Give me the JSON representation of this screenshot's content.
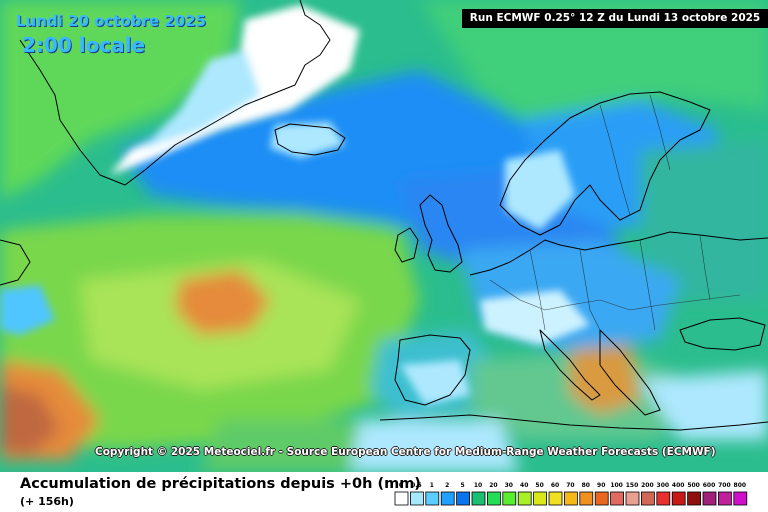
{
  "overlay": {
    "date": "Lundi 20 octobre 2025",
    "time": "2:00 locale",
    "run_info": "Run ECMWF 0.25° 12 Z du Lundi 13 octobre 2025",
    "copyright": "Copyright © 2025 Meteociel.fr - Source European Centre for Medium-Range Weather Forecasts (ECMWF)"
  },
  "footer": {
    "title": "Accumulation de précipitations depuis +0h (mm)",
    "lead": "(+ 156h)"
  },
  "legend": {
    "labels": [
      "0",
      "0.5",
      "1",
      "2",
      "5",
      "10",
      "20",
      "30",
      "40",
      "50",
      "60",
      "70",
      "80",
      "90",
      "100",
      "150",
      "200",
      "300",
      "400",
      "500",
      "600",
      "700",
      "800"
    ],
    "colors": [
      "#ffffff",
      "#a8e8ff",
      "#5ccdff",
      "#20a0ff",
      "#0a74ee",
      "#1abf72",
      "#22dd55",
      "#58ee30",
      "#a8f028",
      "#d8e818",
      "#f0e020",
      "#f6b818",
      "#f09020",
      "#e86820",
      "#e06a60",
      "#e8a090",
      "#d06858",
      "#e83030",
      "#c81818",
      "#901010",
      "#a0207a",
      "#c0209c",
      "#d010c8"
    ]
  },
  "map": {
    "colors": {
      "ocean_high": "#1f8ef5",
      "ocean_mid": "#2bbd8d",
      "ocean_low": "#7fdd4a",
      "ocean_dry": "#b9e85a",
      "heavy": "#e58b3a",
      "very_heavy": "#c06840",
      "greenland_ice": "#ffffff",
      "light": "#aee8ff",
      "medium": "#4fc6ff",
      "scandinavia": "#16c070",
      "coastline": "#000000"
    }
  }
}
